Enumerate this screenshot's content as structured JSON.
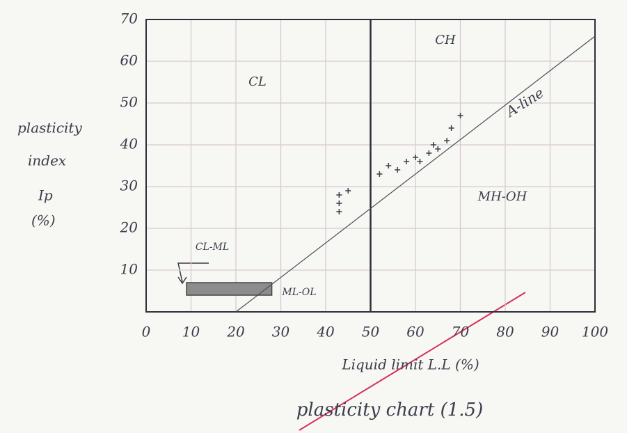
{
  "chart_data": {
    "type": "scatter",
    "title": "plasticity chart (1.5)",
    "x_label": "Liquid limit L.L (%)",
    "y_label": [
      "plasticity",
      "index",
      "Ip",
      "(%)"
    ],
    "xlim": [
      0,
      100
    ],
    "ylim": [
      0,
      70
    ],
    "xticks": [
      0,
      10,
      20,
      30,
      40,
      50,
      60,
      70,
      80,
      90,
      100
    ],
    "yticks": [
      10,
      20,
      30,
      40,
      50,
      60,
      70
    ],
    "grid": true,
    "x": [
      43,
      43,
      43,
      45,
      52,
      54,
      56,
      58,
      60,
      61,
      63,
      64,
      65,
      67,
      68,
      70
    ],
    "values": [
      24,
      26,
      28,
      29,
      33,
      35,
      34,
      36,
      37,
      36,
      38,
      40,
      39,
      41,
      44,
      47
    ],
    "color": "#3a3d4a",
    "a_line": {
      "name": "A-line",
      "x": [
        20,
        100
      ],
      "values": [
        0,
        66
      ]
    },
    "divider_x": 50,
    "shaded_region": {
      "xlim": [
        9,
        28
      ],
      "ylim": [
        4,
        7
      ]
    },
    "annotations": [
      "CL",
      "CH",
      "MH-OH",
      "ML-OL",
      "CL-ML"
    ]
  }
}
